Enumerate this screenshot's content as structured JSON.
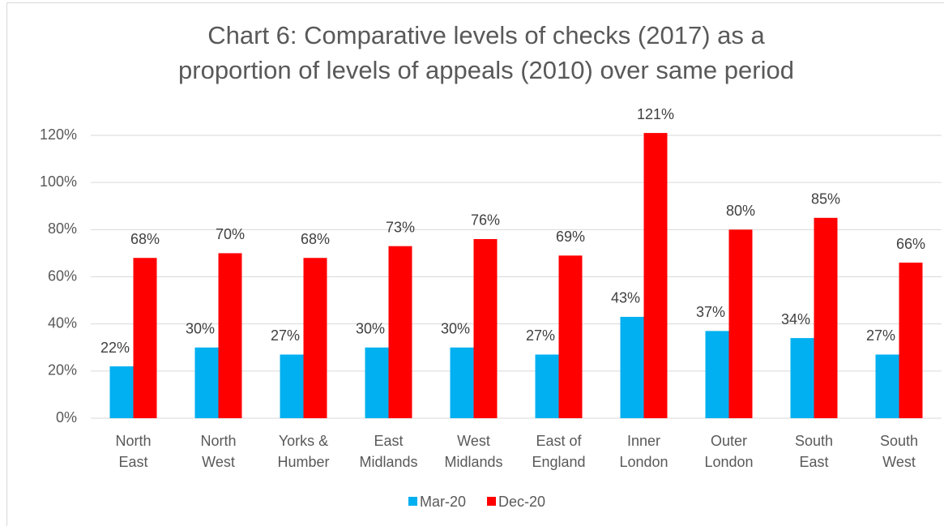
{
  "chart_data": {
    "type": "bar",
    "title": [
      "Chart 6: Comparative levels of checks (2017) as a",
      "proportion of levels of appeals (2010) over same period"
    ],
    "categories": [
      [
        "North",
        "East"
      ],
      [
        "North",
        "West"
      ],
      [
        "Yorks &",
        "Humber"
      ],
      [
        "East",
        "Midlands"
      ],
      [
        "West",
        "Midlands"
      ],
      [
        "East of",
        "England"
      ],
      [
        "Inner",
        "London"
      ],
      [
        "Outer",
        "London"
      ],
      [
        "South",
        "East"
      ],
      [
        "South",
        "West"
      ]
    ],
    "series": [
      {
        "name": "Mar-20",
        "color": "#00b0f0",
        "values": [
          22,
          30,
          27,
          30,
          30,
          27,
          43,
          37,
          34,
          27
        ],
        "value_labels": [
          "22%",
          "30%",
          "27%",
          "30%",
          "30%",
          "27%",
          "43%",
          "37%",
          "34%",
          "27%"
        ]
      },
      {
        "name": "Dec-20",
        "color": "#ff0000",
        "values": [
          68,
          70,
          68,
          73,
          76,
          69,
          121,
          80,
          85,
          66
        ],
        "value_labels": [
          "68%",
          "70%",
          "68%",
          "73%",
          "76%",
          "69%",
          "121%",
          "80%",
          "85%",
          "66%"
        ]
      }
    ],
    "ylim": [
      0,
      120
    ],
    "yticks": [
      {
        "value": 0,
        "label": "0%"
      },
      {
        "value": 20,
        "label": "20%"
      },
      {
        "value": 40,
        "label": "40%"
      },
      {
        "value": 60,
        "label": "60%"
      },
      {
        "value": 80,
        "label": "80%"
      },
      {
        "value": 100,
        "label": "100%"
      },
      {
        "value": 120,
        "label": "120%"
      }
    ],
    "grid": true,
    "legend": "bottom"
  }
}
